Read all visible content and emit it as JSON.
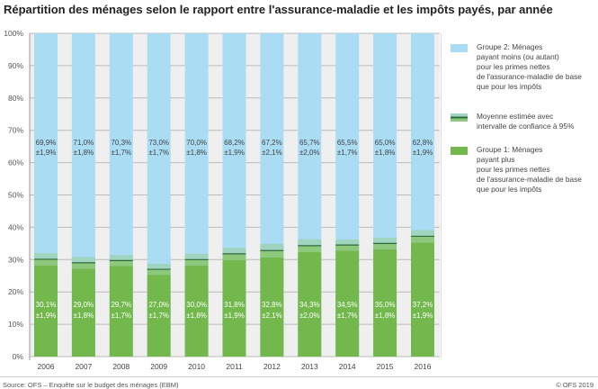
{
  "title": "Répartition des ménages selon le rapport entre l'assurance-maladie et les impôts payés, par année",
  "footer": {
    "source": "Source: OFS – Enquête sur le budget des ménages (EBM)",
    "copyright": "© OFS 2019"
  },
  "colors": {
    "group2": "#aadcf3",
    "ci_upper": "#9fd5c0",
    "ci_lower": "#8dc87c",
    "group1": "#72b84c",
    "mean_line": "#2e6b3a",
    "gap": "#efefef"
  },
  "legend": [
    {
      "key": "group2",
      "label": "Groupe 2: Ménages\npayant moins (ou autant)\npour les primes nettes\nde l'assurance-maladie de base\nque pour les impôts"
    },
    {
      "key": "ci",
      "label": "Moyenne estimée avec\nintervalle de confiance à 95%"
    },
    {
      "key": "group1",
      "label": "Groupe 1: Ménages\npayant plus\npour les primes nettes\nde l'assurance-maladie de base\nque pour les impôts"
    }
  ],
  "chart_data": {
    "type": "bar",
    "stacked": true,
    "categories": [
      "2006",
      "2007",
      "2008",
      "2009",
      "2010",
      "2011",
      "2012",
      "2013",
      "2014",
      "2015",
      "2016"
    ],
    "series": [
      {
        "name": "Groupe 1: Ménages payant plus pour les primes nettes de l'assurance-maladie de base que pour les impôts",
        "values": [
          30.1,
          29.0,
          29.7,
          27.0,
          30.0,
          31.8,
          32.8,
          34.3,
          34.5,
          35.0,
          37.2
        ],
        "ci": [
          1.9,
          1.8,
          1.7,
          1.7,
          1.8,
          1.9,
          2.1,
          2.0,
          1.7,
          1.8,
          1.9
        ],
        "labels": [
          "30,1%",
          "29,0%",
          "29,7%",
          "27,0%",
          "30,0%",
          "31,8%",
          "32,8%",
          "34,3%",
          "34,5%",
          "35,0%",
          "37,2%"
        ],
        "ci_labels": [
          "±1,9%",
          "±1,8%",
          "±1,7%",
          "±1,7%",
          "±1,8%",
          "±1,9%",
          "±2,1%",
          "±2,0%",
          "±1,7%",
          "±1,8%",
          "±1,9%"
        ]
      },
      {
        "name": "Groupe 2: Ménages payant moins (ou autant) pour les primes nettes de l'assurance-maladie de base que pour les impôts",
        "values": [
          69.9,
          71.0,
          70.3,
          73.0,
          70.0,
          68.2,
          67.2,
          65.7,
          65.5,
          65.0,
          62.8
        ],
        "labels": [
          "69,9%",
          "71,0%",
          "70,3%",
          "73,0%",
          "70,0%",
          "68,2%",
          "67,2%",
          "65,7%",
          "65,5%",
          "65,0%",
          "62,8%"
        ],
        "ci_labels": [
          "±1,9%",
          "±1,8%",
          "±1,7%",
          "±1,7%",
          "±1,8%",
          "±1,9%",
          "±2,1%",
          "±2,0%",
          "±1,7%",
          "±1,8%",
          "±1,9%"
        ]
      }
    ],
    "yticks": [
      "0%",
      "10%",
      "20%",
      "30%",
      "40%",
      "50%",
      "60%",
      "70%",
      "80%",
      "90%",
      "100%"
    ],
    "ylim": [
      0,
      100
    ],
    "grid": true,
    "legend_position": "right"
  }
}
